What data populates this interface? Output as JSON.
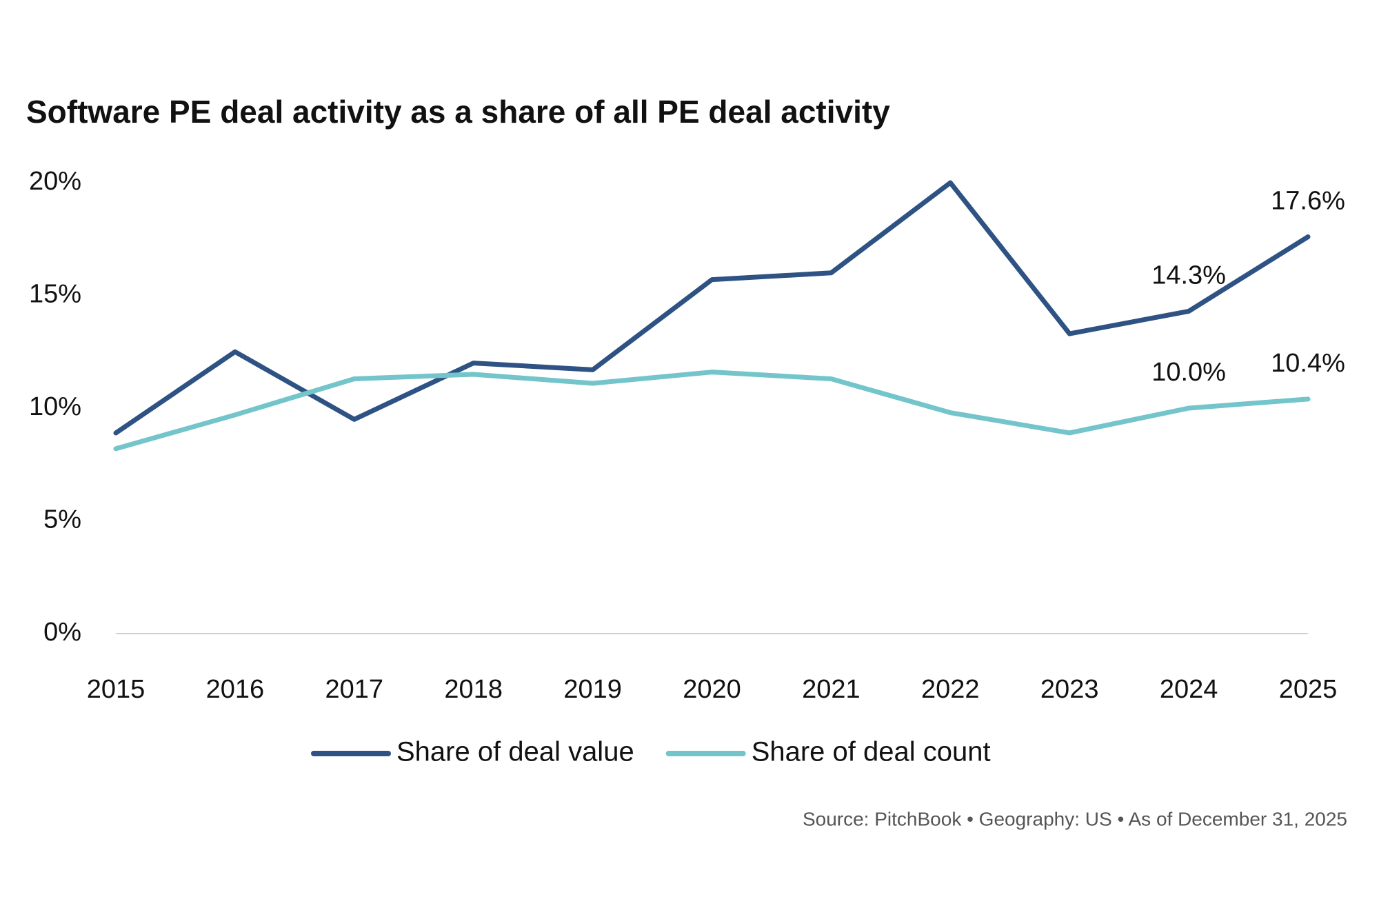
{
  "chart_data": {
    "type": "line",
    "title": "Software PE deal activity as a share of all PE deal activity",
    "source": "Source: PitchBook  •  Geography: US  •  As of December 31, 2025",
    "categories": [
      "2015",
      "2016",
      "2017",
      "2018",
      "2019",
      "2020",
      "2021",
      "2022",
      "2023",
      "2024",
      "2025"
    ],
    "series": [
      {
        "name": "Share of deal value",
        "color": "#2e5283",
        "values": [
          8.9,
          12.5,
          9.5,
          12.0,
          11.7,
          15.7,
          16.0,
          20.0,
          13.3,
          14.3,
          17.6
        ],
        "value_labels": [
          null,
          null,
          null,
          null,
          null,
          null,
          null,
          null,
          null,
          "14.3%",
          "17.6%"
        ]
      },
      {
        "name": "Share of deal count",
        "color": "#74c5cb",
        "values": [
          8.2,
          9.7,
          11.3,
          11.5,
          11.1,
          11.6,
          11.3,
          9.8,
          8.9,
          10.0,
          10.4
        ],
        "value_labels": [
          null,
          null,
          null,
          null,
          null,
          null,
          null,
          null,
          null,
          "10.0%",
          "10.4%"
        ]
      }
    ],
    "ylim": [
      0,
      20
    ],
    "yticks": [
      {
        "value": 0,
        "label": "0%"
      },
      {
        "value": 5,
        "label": "5%"
      },
      {
        "value": 10,
        "label": "10%"
      },
      {
        "value": 15,
        "label": "15%"
      },
      {
        "value": 20,
        "label": "20%"
      }
    ],
    "grid": false,
    "legend": "bottom"
  }
}
